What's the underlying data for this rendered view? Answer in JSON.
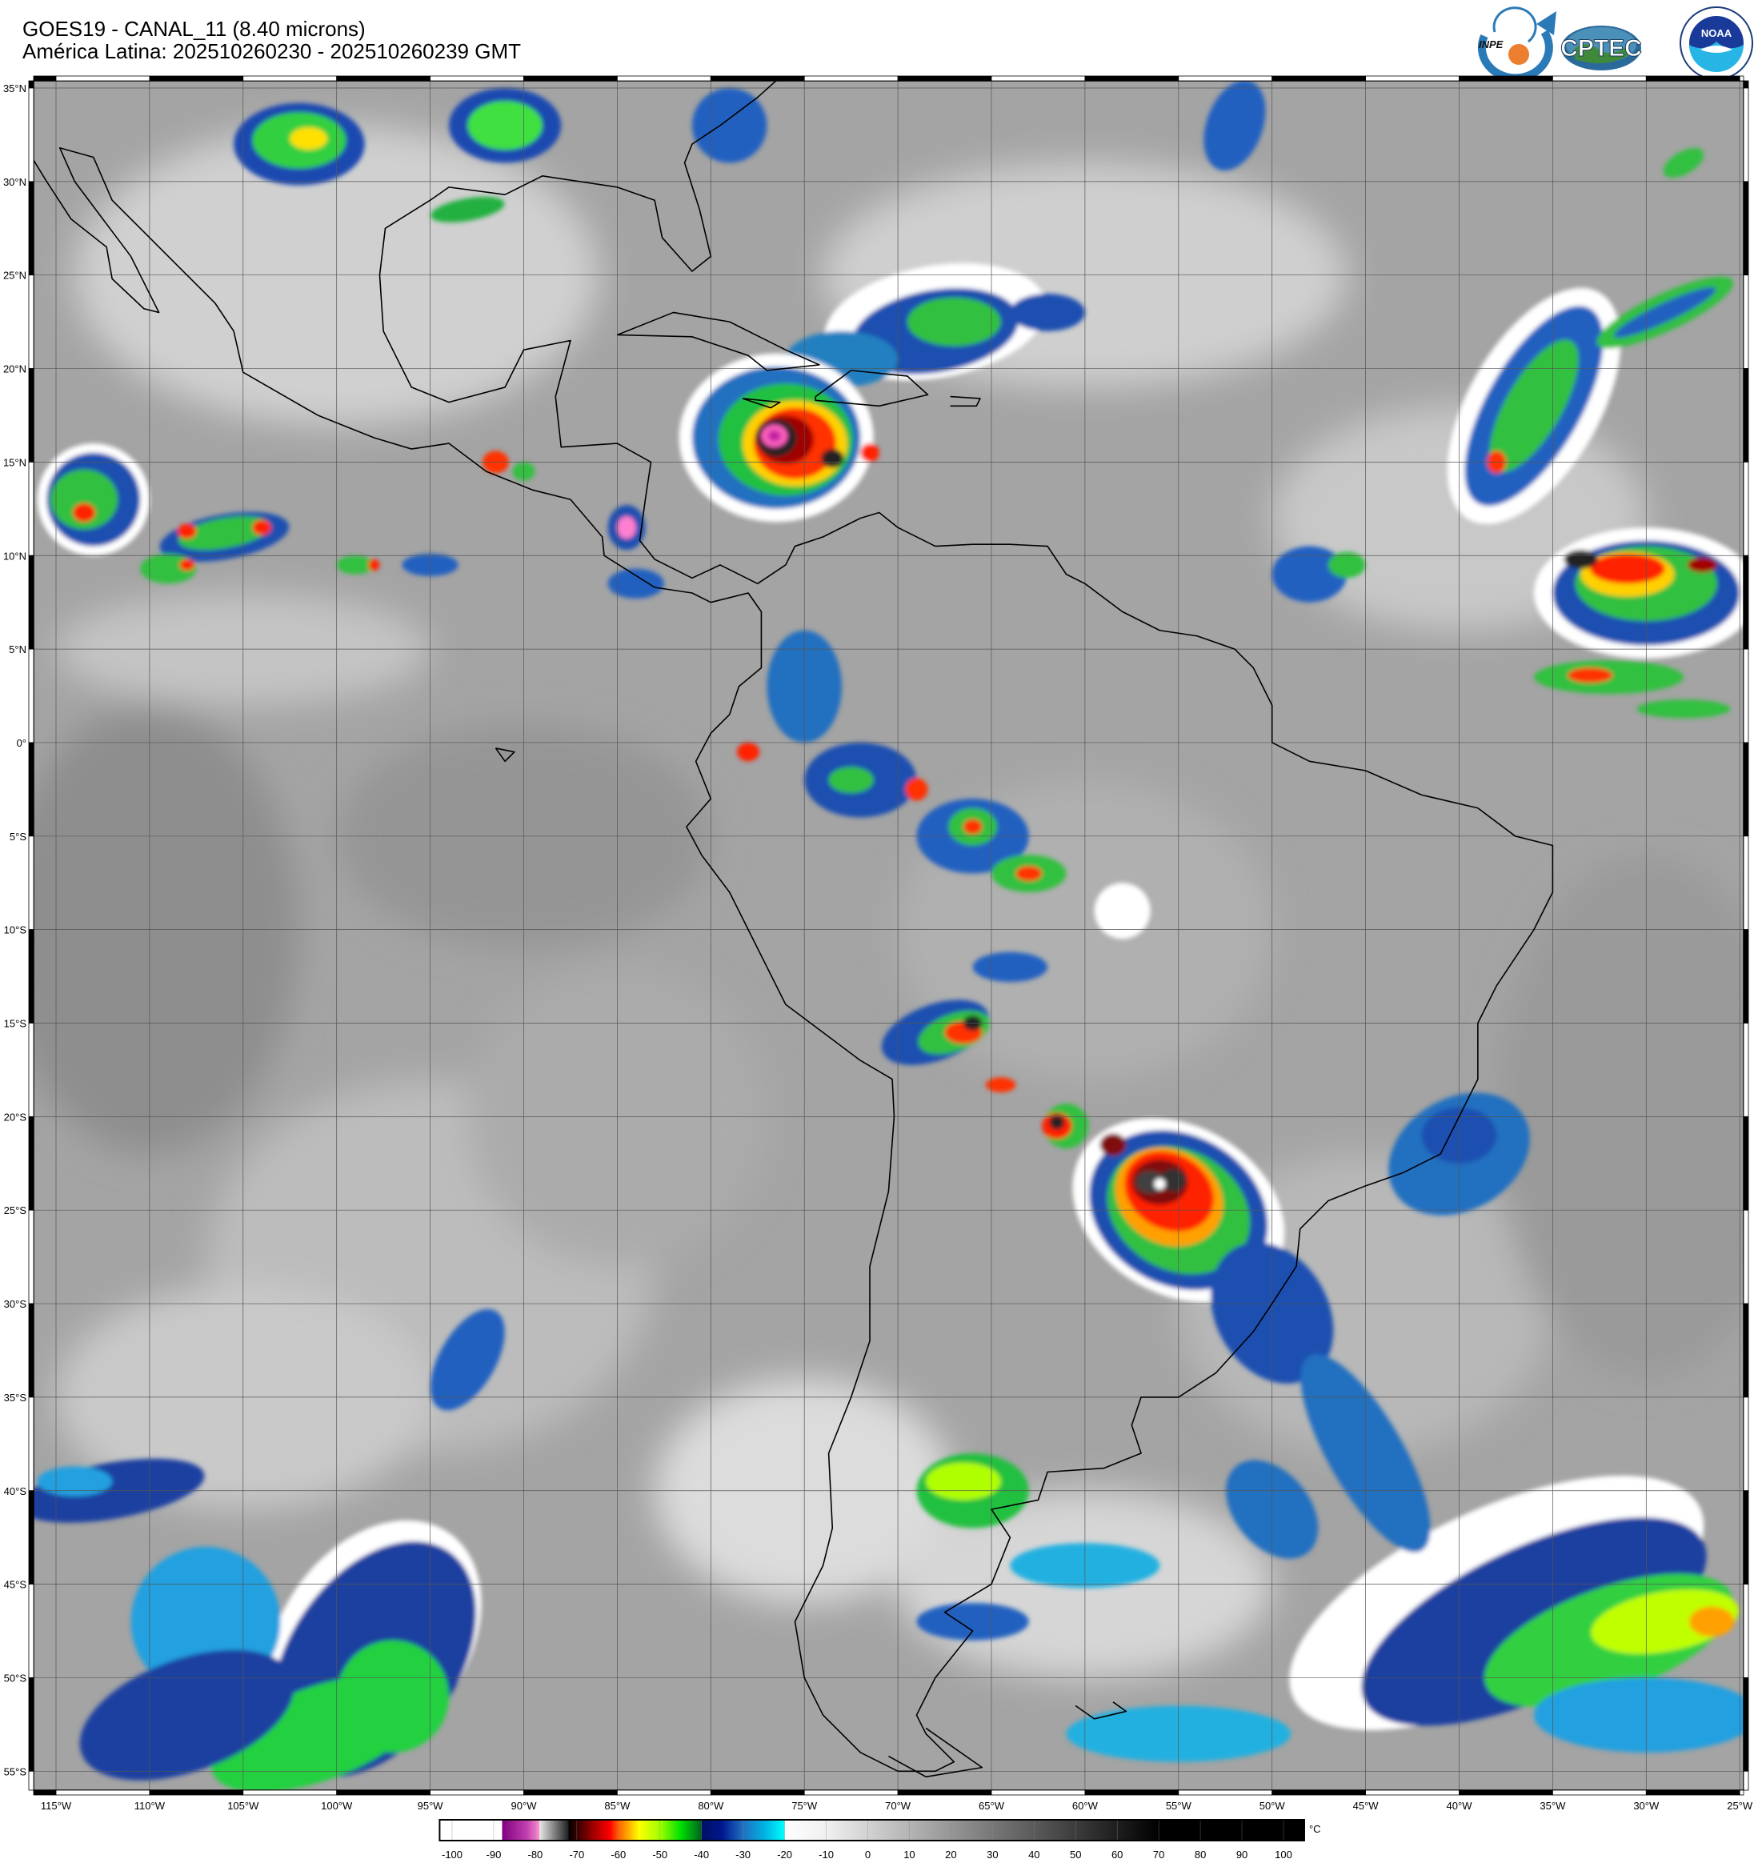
{
  "header": {
    "title": "GOES19 - CANAL_11 (8.40 microns)",
    "subtitle": "América Latina: 202510260230 - 202510260239 GMT"
  },
  "logos": {
    "inpe": "INPE",
    "cptec": "CPTEC",
    "noaa": "NOAA",
    "noaa_ring_top": "NATIONAL OCEANIC AND ATMOSPHERIC ADMINISTRATION",
    "noaa_ring_bottom": "U.S. DEPARTMENT OF COMMERCE"
  },
  "map": {
    "projection": "equirectangular",
    "grid": true,
    "lat_labels": [
      "35°N",
      "30°N",
      "25°N",
      "20°N",
      "15°N",
      "10°N",
      "5°N",
      "0°",
      "5°S",
      "10°S",
      "15°S",
      "20°S",
      "25°S",
      "30°S",
      "35°S",
      "40°S",
      "45°S",
      "50°S",
      "55°S"
    ],
    "lat_values": [
      35,
      30,
      25,
      20,
      15,
      10,
      5,
      0,
      -5,
      -10,
      -15,
      -20,
      -25,
      -30,
      -35,
      -40,
      -45,
      -50,
      -55
    ],
    "lon_labels": [
      "115°W",
      "110°W",
      "105°W",
      "100°W",
      "95°W",
      "90°W",
      "85°W",
      "80°W",
      "75°W",
      "70°W",
      "65°W",
      "60°W",
      "55°W",
      "50°W",
      "45°W",
      "40°W",
      "35°W",
      "30°W",
      "25°W"
    ],
    "lon_values": [
      -115,
      -110,
      -105,
      -100,
      -95,
      -90,
      -85,
      -80,
      -75,
      -70,
      -65,
      -60,
      -55,
      -50,
      -45,
      -40,
      -35,
      -30,
      -25
    ]
  },
  "colorbar": {
    "unit": "°C",
    "tick_labels": [
      "-100",
      "-90",
      "-80",
      "-70",
      "-60",
      "-50",
      "-40",
      "-30",
      "-20",
      "-10",
      "0",
      "10",
      "20",
      "30",
      "40",
      "50",
      "60",
      "70",
      "80",
      "90",
      "100"
    ],
    "tick_values": [
      -100,
      -90,
      -80,
      -70,
      -60,
      -50,
      -40,
      -30,
      -20,
      -10,
      0,
      10,
      20,
      30,
      40,
      50,
      60,
      70,
      80,
      90,
      100
    ],
    "range": [
      -103,
      105
    ],
    "stops": [
      {
        "value": -103,
        "color": "#ffffff"
      },
      {
        "value": -88,
        "color": "#ffffff"
      },
      {
        "value": -88,
        "color": "#800080"
      },
      {
        "value": -82,
        "color": "#c040b0"
      },
      {
        "value": -79,
        "color": "#ff90d0"
      },
      {
        "value": -79,
        "color": "#e8e8e8"
      },
      {
        "value": -72,
        "color": "#202020"
      },
      {
        "value": -72,
        "color": "#000000"
      },
      {
        "value": -66,
        "color": "#a00000"
      },
      {
        "value": -62,
        "color": "#ff0000"
      },
      {
        "value": -60,
        "color": "#ff6000"
      },
      {
        "value": -55,
        "color": "#ffff00"
      },
      {
        "value": -50,
        "color": "#a0ff00"
      },
      {
        "value": -45,
        "color": "#00e000"
      },
      {
        "value": -40,
        "color": "#006020"
      },
      {
        "value": -40,
        "color": "#001060"
      },
      {
        "value": -35,
        "color": "#001890"
      },
      {
        "value": -30,
        "color": "#2070c0"
      },
      {
        "value": -25,
        "color": "#00b0e0"
      },
      {
        "value": -20,
        "color": "#00ffff"
      },
      {
        "value": -20,
        "color": "#ffffff"
      },
      {
        "value": -10,
        "color": "#f0f0f0"
      },
      {
        "value": 70,
        "color": "#000000"
      },
      {
        "value": 105,
        "color": "#000000"
      }
    ]
  }
}
